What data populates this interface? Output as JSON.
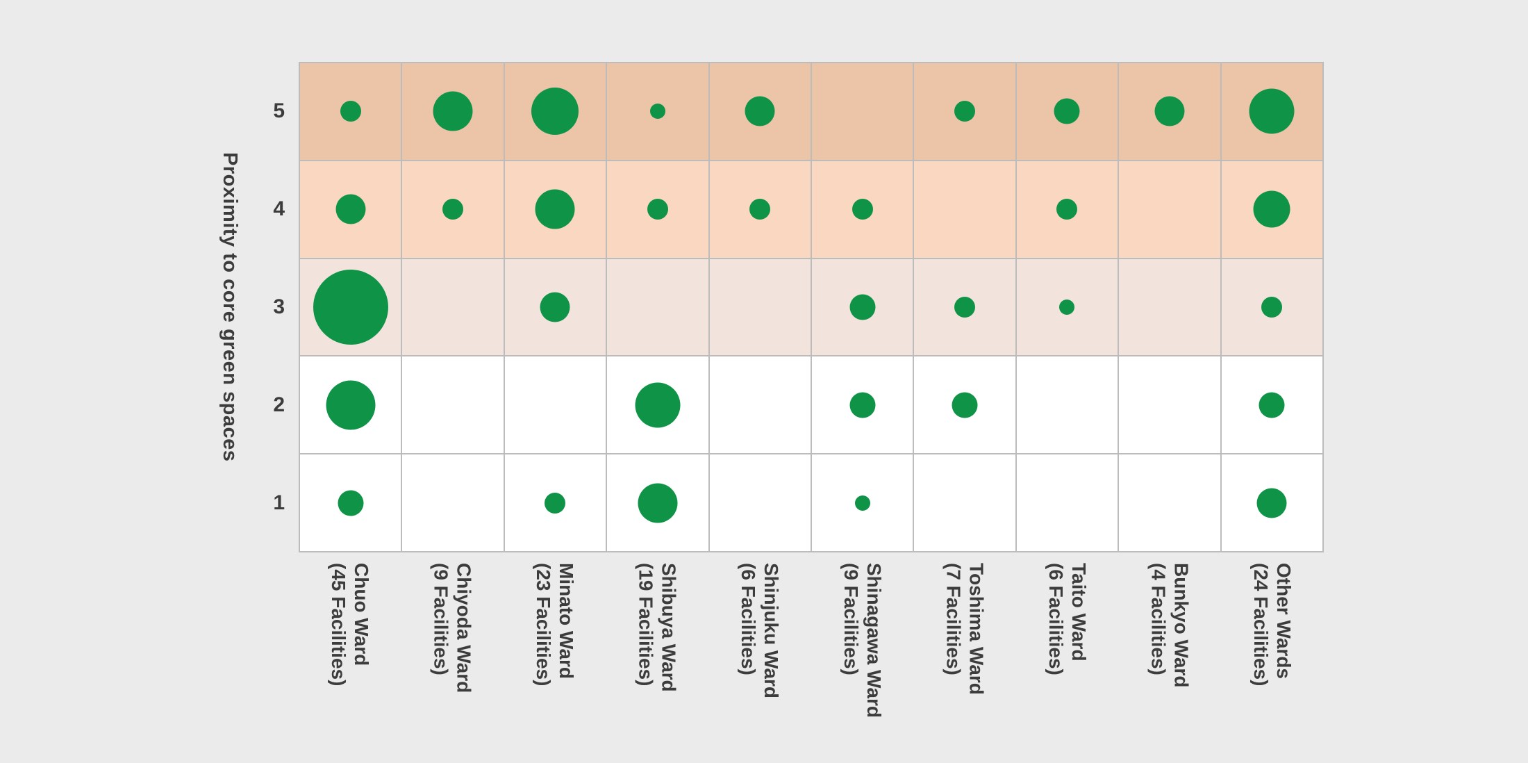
{
  "chart_data": {
    "type": "bubble-matrix",
    "ylabel": "Proximity to core green spaces",
    "y_levels": [
      5,
      4,
      3,
      2,
      1
    ],
    "x_axis_note": "each column label shows ward name and total facilities",
    "columns": [
      {
        "ward": "Chuo Ward",
        "facilities_label": "(45 Facilities)",
        "total": 45,
        "values": [
          2,
          4,
          25,
          11,
          3
        ]
      },
      {
        "ward": "Chiyoda Ward",
        "facilities_label": "(9 Facilities)",
        "total": 9,
        "values": [
          7,
          2,
          0,
          0,
          0
        ]
      },
      {
        "ward": "Minato Ward",
        "facilities_label": "(23 Facilities)",
        "total": 23,
        "values": [
          10,
          7,
          4,
          0,
          2
        ]
      },
      {
        "ward": "Shibuya Ward",
        "facilities_label": "(19 Facilities)",
        "total": 19,
        "values": [
          1,
          2,
          0,
          9,
          7
        ]
      },
      {
        "ward": "Shinjuku Ward",
        "facilities_label": "(6 Facilities)",
        "total": 6,
        "values": [
          4,
          2,
          0,
          0,
          0
        ]
      },
      {
        "ward": "Shinagawa Ward",
        "facilities_label": "(9 Facilities)",
        "total": 9,
        "values": [
          0,
          2,
          3,
          3,
          1
        ]
      },
      {
        "ward": "Toshima Ward",
        "facilities_label": "(7 Facilities)",
        "total": 7,
        "values": [
          2,
          0,
          2,
          3,
          0
        ]
      },
      {
        "ward": "Taito Ward",
        "facilities_label": "(6 Facilities)",
        "total": 6,
        "values": [
          3,
          2,
          1,
          0,
          0
        ]
      },
      {
        "ward": "Bunkyo Ward",
        "facilities_label": "(4 Facilities)",
        "total": 4,
        "values": [
          4,
          0,
          0,
          0,
          0
        ]
      },
      {
        "ward": "Other Wards",
        "facilities_label": "(24 Facilities)",
        "total": 24,
        "values": [
          9,
          6,
          2,
          3,
          4
        ]
      }
    ],
    "bubble_color": "#0f9447",
    "row_band_colors": {
      "5": "#ecc4a8",
      "4": "#fad7c0",
      "3": "#f2e4dd",
      "2": "#ffffff",
      "1": "#ffffff"
    },
    "gridline_color": "#bcbcbc",
    "background_color": "#ebebeb"
  }
}
